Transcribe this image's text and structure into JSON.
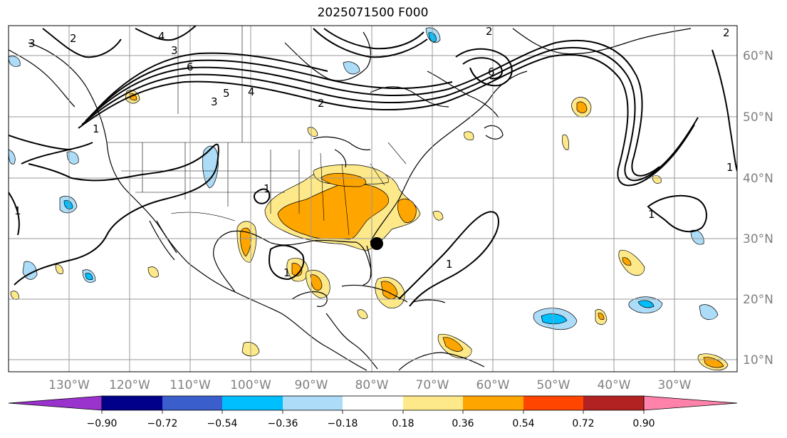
{
  "title": "2025071500 F000",
  "colors": {
    "fill_light_yellow": "#fde98a",
    "fill_orange": "#ffa500",
    "fill_light_blue": "#acdcf7",
    "fill_blue": "#00bfff",
    "contour": "#000000",
    "grid": "#999999",
    "marker": "#000000"
  },
  "lon_labels": [
    "130°W",
    "120°W",
    "110°W",
    "100°W",
    "90°W",
    "80°W",
    "70°W",
    "60°W",
    "50°W",
    "40°W",
    "30°W"
  ],
  "lat_labels": [
    "60°N",
    "50°N",
    "40°N",
    "30°N",
    "20°N",
    "10°N"
  ],
  "contour_labels": [
    "2",
    "4",
    "3",
    "6",
    "5",
    "4",
    "3",
    "2",
    "1",
    "1",
    "1",
    "1",
    "1",
    "1",
    "2",
    "1",
    "3",
    "2",
    "6"
  ],
  "colorbar": {
    "colors": [
      "#9a32cd",
      "#00008b",
      "#3a5fcd",
      "#00bfff",
      "#acdcf7",
      "#ffffff",
      "#fde98a",
      "#ffa500",
      "#ff4500",
      "#b22222",
      "#ff82ab"
    ],
    "tick_labels": [
      "−0.90",
      "−0.72",
      "−0.54",
      "−0.36",
      "−0.18",
      "0.18",
      "0.36",
      "0.54",
      "0.72",
      "0.90"
    ]
  }
}
